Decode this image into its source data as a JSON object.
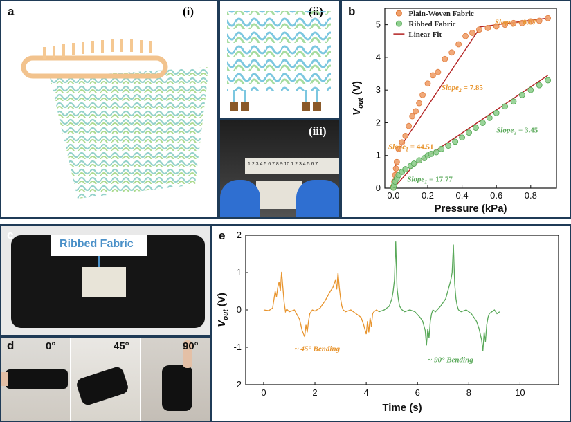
{
  "panels": {
    "a": {
      "label": "a",
      "sub": "(i)"
    },
    "ii": {
      "label": "(ii)"
    },
    "iii": {
      "label": "(iii)",
      "ruler": "1 2 3 4 5 6 7 8 9 10 1 2 3 4 5 6 7"
    },
    "b": {
      "label": "b"
    },
    "c": {
      "label": "c",
      "callout": "Ribbed Fabric"
    },
    "d": {
      "label": "d",
      "angles": [
        "0°",
        "45°",
        "90°"
      ]
    },
    "e": {
      "label": "e"
    }
  },
  "colors": {
    "border": "#1f3b57",
    "orange": "#f0a06a",
    "orange_edge": "#e07a3a",
    "green": "#8fcf8f",
    "green_edge": "#4fa34f",
    "fit": "#b22222",
    "trace_orange": "#e8952f",
    "trace_green": "#5aa95a",
    "callout": "#4a90c8"
  },
  "chart_data": [
    {
      "type": "scatter",
      "panel": "b",
      "xlabel": "Pressure (kPa)",
      "ylabel_main": "V",
      "ylabel_sub": "out",
      "ylabel_unit": "(V)",
      "xlim": [
        -0.05,
        0.95
      ],
      "ylim": [
        0,
        5.5
      ],
      "xticks": [
        "0.0",
        "0.2",
        "0.4",
        "0.6",
        "0.8"
      ],
      "yticks": [
        "0",
        "1",
        "2",
        "3",
        "4",
        "5"
      ],
      "legend": [
        "Plain-Woven Fabric",
        "Ribbed Fabric",
        "Linear Fit"
      ],
      "series": [
        {
          "name": "Plain-Woven Fabric",
          "x": [
            0.0,
            0.005,
            0.01,
            0.015,
            0.02,
            0.03,
            0.05,
            0.07,
            0.09,
            0.11,
            0.13,
            0.15,
            0.17,
            0.2,
            0.23,
            0.26,
            0.3,
            0.34,
            0.38,
            0.42,
            0.46,
            0.5,
            0.55,
            0.6,
            0.65,
            0.7,
            0.75,
            0.8,
            0.85,
            0.9
          ],
          "y": [
            0.05,
            0.2,
            0.4,
            0.6,
            0.8,
            1.2,
            1.4,
            1.6,
            1.9,
            2.2,
            2.35,
            2.6,
            2.85,
            3.2,
            3.45,
            3.55,
            3.95,
            4.15,
            4.4,
            4.65,
            4.75,
            4.85,
            4.9,
            4.95,
            5.0,
            5.05,
            5.05,
            5.1,
            5.12,
            5.2
          ]
        },
        {
          "name": "Ribbed Fabric",
          "x": [
            0.0,
            0.005,
            0.01,
            0.02,
            0.03,
            0.05,
            0.07,
            0.1,
            0.12,
            0.15,
            0.18,
            0.2,
            0.22,
            0.25,
            0.28,
            0.32,
            0.36,
            0.4,
            0.44,
            0.48,
            0.52,
            0.56,
            0.6,
            0.65,
            0.7,
            0.75,
            0.8,
            0.85,
            0.9
          ],
          "y": [
            0.02,
            0.1,
            0.2,
            0.3,
            0.4,
            0.5,
            0.58,
            0.68,
            0.75,
            0.85,
            0.92,
            1.0,
            1.05,
            1.1,
            1.2,
            1.3,
            1.42,
            1.55,
            1.7,
            1.85,
            2.0,
            2.15,
            2.3,
            2.5,
            2.65,
            2.85,
            3.0,
            3.15,
            3.3
          ]
        }
      ],
      "fits": [
        {
          "x": [
            0.0,
            0.015
          ],
          "y": [
            0.1,
            0.78
          ]
        },
        {
          "x": [
            0.02,
            0.5
          ],
          "y": [
            1.1,
            4.87
          ]
        },
        {
          "x": [
            0.5,
            0.9
          ],
          "y": [
            4.93,
            5.2
          ]
        },
        {
          "x": [
            0.0,
            0.12
          ],
          "y": [
            0.0,
            0.7
          ]
        },
        {
          "x": [
            0.12,
            0.9
          ],
          "y": [
            0.7,
            3.45
          ]
        }
      ],
      "annotations": [
        {
          "main": "Slope",
          "sub": "3",
          "val": " = 0.67",
          "x": 0.59,
          "y": 5.0,
          "color": "orange"
        },
        {
          "main": "Slope",
          "sub": "2",
          "val": " = 7.85",
          "x": 0.28,
          "y": 3.0,
          "color": "orange"
        },
        {
          "main": "Slope",
          "sub": "1",
          "val": " = 44.51",
          "x": -0.03,
          "y": 1.2,
          "color": "orange"
        },
        {
          "main": "Slope",
          "sub": "2",
          "val": " = 3.45",
          "x": 0.6,
          "y": 1.7,
          "color": "green"
        },
        {
          "main": "Slope",
          "sub": "1",
          "val": " = 17.77",
          "x": 0.08,
          "y": 0.2,
          "color": "green"
        }
      ]
    },
    {
      "type": "line",
      "panel": "e",
      "xlabel": "Time (s)",
      "ylabel_main": "V",
      "ylabel_sub": "out",
      "ylabel_unit": "(V)",
      "xlim": [
        -0.7,
        11.5
      ],
      "ylim": [
        -2,
        2
      ],
      "xticks": [
        "0",
        "2",
        "4",
        "6",
        "8",
        "10"
      ],
      "yticks": [
        "-2",
        "-1",
        "0",
        "1",
        "2"
      ],
      "series": [
        {
          "name": "~ 45° Bending",
          "x": [
            0,
            0.2,
            0.35,
            0.45,
            0.5,
            0.55,
            0.6,
            0.65,
            0.7,
            0.75,
            0.8,
            0.85,
            0.9,
            1.0,
            1.2,
            1.4,
            1.5,
            1.6,
            1.65,
            1.7,
            1.75,
            1.8,
            1.85,
            1.9,
            2.0,
            2.2,
            2.4,
            2.6,
            2.7,
            2.8,
            2.85,
            2.9,
            2.95,
            3.0,
            3.05,
            3.1,
            3.2,
            3.4,
            3.6,
            3.8,
            3.9,
            4.0,
            4.05,
            4.1,
            4.15,
            4.2,
            4.25,
            4.3,
            4.4,
            4.5
          ],
          "y": [
            0,
            -0.02,
            0.05,
            0.5,
            0.35,
            0.6,
            0.75,
            0.5,
            1.02,
            0.6,
            0.2,
            -0.05,
            0.02,
            -0.05,
            0.0,
            -0.25,
            -0.55,
            -0.72,
            -0.4,
            -0.6,
            -0.3,
            -0.1,
            -0.05,
            0.0,
            -0.03,
            0.05,
            0.25,
            0.5,
            0.6,
            0.8,
            0.55,
            1.0,
            0.6,
            0.3,
            0.1,
            0.0,
            -0.05,
            0.0,
            -0.1,
            -0.2,
            -0.4,
            -0.65,
            -0.3,
            -0.6,
            -0.2,
            -0.45,
            -0.1,
            -0.05,
            0.0,
            -0.05
          ]
        },
        {
          "name": "~ 90° Bending",
          "x": [
            4.5,
            4.7,
            4.9,
            5.0,
            5.05,
            5.1,
            5.15,
            5.2,
            5.25,
            5.3,
            5.35,
            5.4,
            5.5,
            5.7,
            5.9,
            6.1,
            6.2,
            6.3,
            6.35,
            6.4,
            6.45,
            6.5,
            6.55,
            6.6,
            6.7,
            6.9,
            7.1,
            7.2,
            7.3,
            7.35,
            7.4,
            7.45,
            7.5,
            7.55,
            7.6,
            7.7,
            7.9,
            8.1,
            8.3,
            8.4,
            8.5,
            8.55,
            8.6,
            8.65,
            8.7,
            8.75,
            8.8,
            8.9,
            9.0,
            9.1,
            9.2
          ],
          "y": [
            -0.05,
            0.0,
            0.1,
            0.3,
            0.5,
            0.8,
            1.83,
            0.6,
            0.3,
            0.1,
            0.05,
            0.0,
            -0.05,
            0.0,
            -0.05,
            -0.2,
            -0.3,
            -0.55,
            -0.95,
            -0.5,
            -0.75,
            -0.3,
            -0.1,
            0.0,
            -0.05,
            0.1,
            0.3,
            0.55,
            0.8,
            1.0,
            1.75,
            0.7,
            0.3,
            0.1,
            0.0,
            -0.05,
            0.0,
            -0.1,
            -0.3,
            -0.5,
            -0.8,
            -1.1,
            -0.6,
            -0.85,
            -0.4,
            -0.2,
            -0.1,
            -0.05,
            0.0,
            -0.1,
            -0.05
          ]
        }
      ],
      "annotations": [
        {
          "text": "~ 45° Bending",
          "x": 1.2,
          "y": -1.1,
          "color": "orange"
        },
        {
          "text": "~ 90° Bending",
          "x": 6.4,
          "y": -1.4,
          "color": "green"
        }
      ]
    }
  ]
}
